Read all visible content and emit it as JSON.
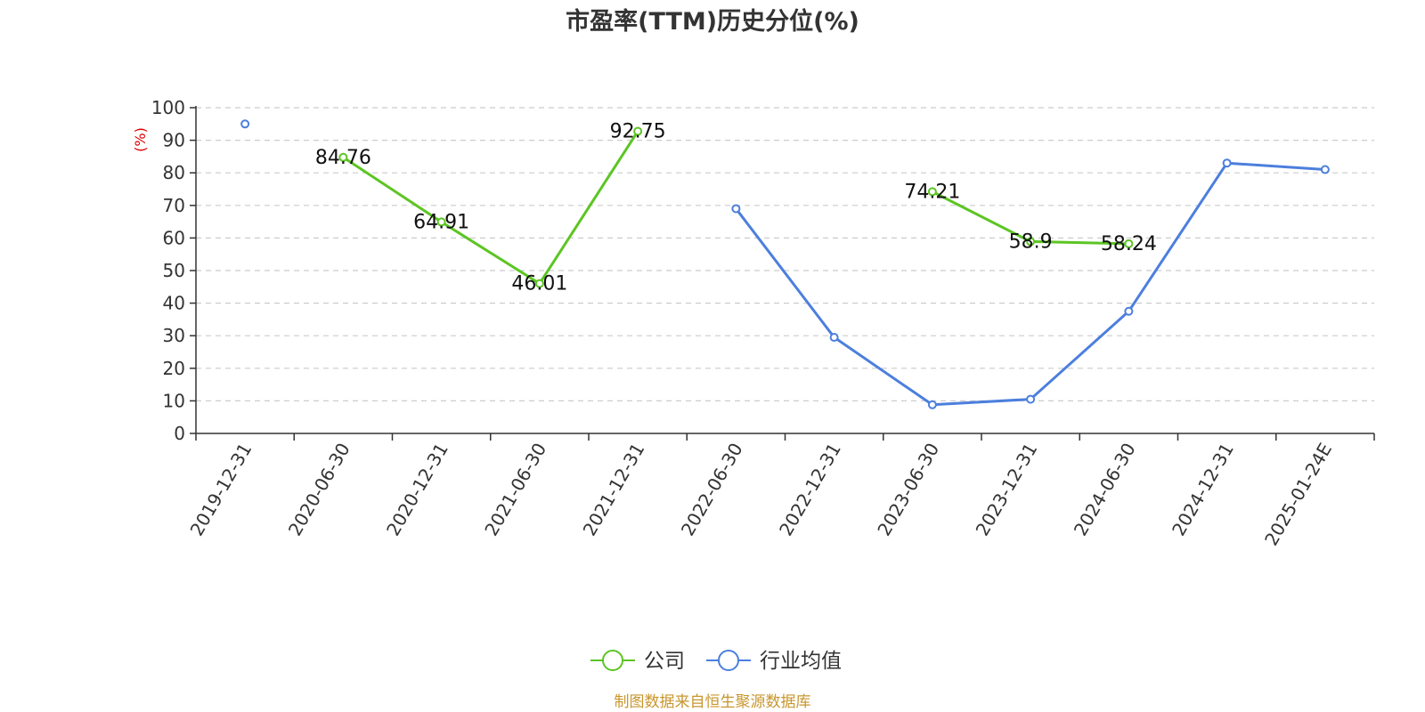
{
  "chart_data": {
    "type": "line",
    "title": "市盈率(TTM)历史分位(%)",
    "ylabel": "(%)",
    "xlabel": "",
    "ylim": [
      0,
      100
    ],
    "yticks": [
      0,
      10,
      20,
      30,
      40,
      50,
      60,
      70,
      80,
      90,
      100
    ],
    "categories": [
      "2019-12-31",
      "2020-06-30",
      "2020-12-31",
      "2021-06-30",
      "2021-12-31",
      "2022-06-30",
      "2022-12-31",
      "2023-06-30",
      "2023-12-31",
      "2024-06-30",
      "2024-12-31",
      "2025-01-24E"
    ],
    "grid": true,
    "legend_position": "bottom",
    "series": [
      {
        "name": "公司",
        "color": "#5cc523",
        "values": [
          null,
          84.76,
          64.91,
          46.01,
          92.75,
          null,
          null,
          74.21,
          58.9,
          58.24,
          null,
          null
        ],
        "labels": [
          null,
          "84.76",
          "64.91",
          "46.01",
          "92.75",
          null,
          null,
          "74.21",
          "58.9",
          "58.24",
          null,
          null
        ],
        "show_labels": true
      },
      {
        "name": "行业均值",
        "color": "#4c7fdd",
        "values": [
          95,
          null,
          null,
          null,
          null,
          69,
          29.5,
          8.8,
          10.5,
          37.5,
          83,
          81
        ],
        "show_labels": false
      }
    ],
    "source": "制图数据来自恒生聚源数据库",
    "ylabel_color": "#dd0000",
    "source_color": "#c8962e"
  }
}
